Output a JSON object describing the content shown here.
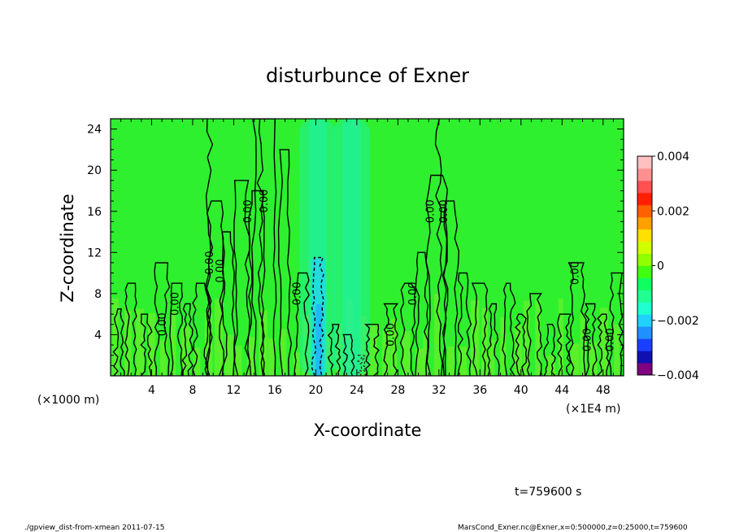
{
  "chart_data": {
    "type": "heatmap",
    "title": "disturbunce of Exner",
    "xlabel": "X-coordinate",
    "ylabel": "Z-coordinate",
    "x_unit_label": "(×1000 m)",
    "x_scale_label": "(×1E4 m)",
    "time_label": "t=759600 s",
    "footer_left": "./gpview_dist-from-xmean  2011-07-15",
    "footer_right": "MarsCond_Exner.nc@Exner,x=0:500000,z=0:25000,t=759600",
    "xlim": [
      0,
      50
    ],
    "ylim": [
      0,
      25
    ],
    "x_ticks": [
      4,
      8,
      12,
      16,
      20,
      24,
      28,
      32,
      36,
      40,
      44,
      48
    ],
    "y_ticks": [
      4,
      8,
      12,
      16,
      20,
      24
    ],
    "colorbar": {
      "range": [
        -0.004,
        0.004
      ],
      "tick_labels": [
        {
          "value": 0.004,
          "label": "0.004"
        },
        {
          "value": 0.002,
          "label": "0.002"
        },
        {
          "value": 0,
          "label": "0"
        },
        {
          "value": -0.002,
          "label": "−0.002"
        },
        {
          "value": -0.004,
          "label": "−0.004"
        }
      ],
      "colors": [
        "#800080",
        "#1010b0",
        "#1a40ff",
        "#1f90ff",
        "#20d0ff",
        "#20ffd0",
        "#20ff90",
        "#10ff60",
        "#40ff10",
        "#90ff00",
        "#d0ff00",
        "#ffe000",
        "#ffa000",
        "#ff6000",
        "#ff2000",
        "#ff5050",
        "#ff9090",
        "#ffc0c0"
      ]
    },
    "contour_label": "0.00",
    "contour_label_positions": [
      [
        5.4,
        5.0
      ],
      [
        6.6,
        7.0
      ],
      [
        10.0,
        11.0
      ],
      [
        11.0,
        10.2
      ],
      [
        13.7,
        16.0
      ],
      [
        15.3,
        17.0
      ],
      [
        18.5,
        8.0
      ],
      [
        27.6,
        4.0
      ],
      [
        29.8,
        8.0
      ],
      [
        31.5,
        16.0
      ],
      [
        32.8,
        16.0
      ],
      [
        45.6,
        10.0
      ],
      [
        46.8,
        3.5
      ],
      [
        49.0,
        3.5
      ]
    ],
    "plume_centers": [
      20.2,
      23.5
    ]
  }
}
